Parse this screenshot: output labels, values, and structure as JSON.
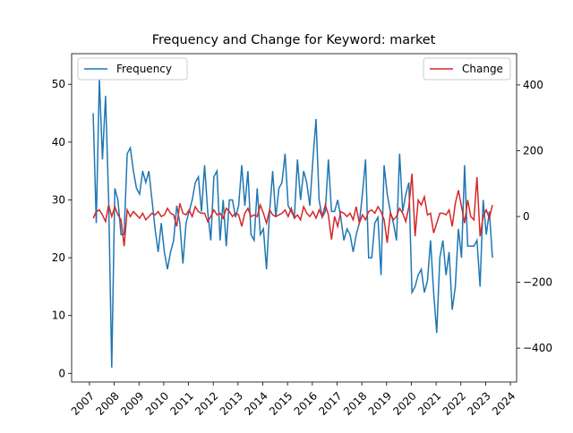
{
  "chart_data": {
    "type": "line",
    "title": "Frequency and Change for Keyword: market",
    "x": [
      2007.15,
      2007.275,
      2007.4,
      2007.525,
      2007.65,
      2007.775,
      2007.9,
      2008.025,
      2008.15,
      2008.275,
      2008.4,
      2008.525,
      2008.65,
      2008.775,
      2008.9,
      2009.025,
      2009.15,
      2009.275,
      2009.4,
      2009.525,
      2009.65,
      2009.775,
      2009.9,
      2010.025,
      2010.15,
      2010.275,
      2010.4,
      2010.525,
      2010.65,
      2010.775,
      2010.9,
      2011.025,
      2011.15,
      2011.275,
      2011.4,
      2011.525,
      2011.65,
      2011.775,
      2011.9,
      2012.025,
      2012.15,
      2012.275,
      2012.4,
      2012.525,
      2012.65,
      2012.775,
      2012.9,
      2013.025,
      2013.15,
      2013.275,
      2013.4,
      2013.525,
      2013.65,
      2013.775,
      2013.9,
      2014.025,
      2014.15,
      2014.275,
      2014.4,
      2014.525,
      2014.65,
      2014.775,
      2014.9,
      2015.025,
      2015.15,
      2015.275,
      2015.4,
      2015.525,
      2015.65,
      2015.775,
      2015.9,
      2016.025,
      2016.15,
      2016.275,
      2016.4,
      2016.525,
      2016.65,
      2016.775,
      2016.9,
      2017.025,
      2017.15,
      2017.275,
      2017.4,
      2017.525,
      2017.65,
      2017.775,
      2017.9,
      2018.025,
      2018.15,
      2018.275,
      2018.4,
      2018.525,
      2018.65,
      2018.775,
      2018.9,
      2019.025,
      2019.15,
      2019.275,
      2019.4,
      2019.525,
      2019.65,
      2019.775,
      2019.9,
      2020.025,
      2020.15,
      2020.275,
      2020.4,
      2020.525,
      2020.65,
      2020.775,
      2020.9,
      2021.025,
      2021.15,
      2021.275,
      2021.4,
      2021.525,
      2021.65,
      2021.775,
      2021.9,
      2022.025,
      2022.15,
      2022.275,
      2022.4,
      2022.525,
      2022.65,
      2022.775,
      2022.9,
      2023.025,
      2023.15,
      2023.275
    ],
    "series": [
      {
        "name": "Frequency",
        "color": "#1f77b4",
        "axis": "y",
        "values": [
          45,
          26,
          51,
          37,
          48,
          30,
          1,
          32,
          30,
          24,
          24,
          38,
          39,
          35,
          32,
          31,
          35,
          33,
          35,
          30,
          25,
          21,
          26,
          21,
          18,
          21,
          23,
          29,
          26,
          19,
          26,
          28,
          30,
          33,
          34,
          28,
          36,
          28,
          23,
          34,
          35,
          23,
          30,
          22,
          30,
          30,
          27,
          29,
          36,
          29,
          35,
          24,
          23,
          32,
          24,
          25,
          18,
          28,
          35,
          27,
          32,
          33,
          38,
          29,
          28,
          27,
          37,
          30,
          35,
          33,
          29,
          37,
          44,
          30,
          27,
          28,
          37,
          28,
          28,
          30,
          27,
          23,
          25,
          24,
          21,
          24,
          26,
          31,
          37,
          20,
          20,
          26,
          27,
          17,
          36,
          31,
          28,
          26,
          23,
          38,
          28,
          31,
          33,
          14,
          15,
          17,
          18,
          14,
          16,
          23,
          14,
          7,
          20,
          23,
          17,
          21,
          11,
          15,
          25,
          20,
          36,
          22,
          22,
          22,
          23,
          15,
          30,
          24,
          28,
          20
        ]
      },
      {
        "name": "Change",
        "color": "#d62728",
        "axis": "y2",
        "values": [
          -5,
          15,
          20,
          5,
          -15,
          35,
          0,
          30,
          5,
          -10,
          -90,
          20,
          0,
          15,
          5,
          -5,
          10,
          -10,
          0,
          10,
          5,
          15,
          0,
          5,
          25,
          10,
          5,
          -30,
          40,
          10,
          5,
          20,
          0,
          30,
          15,
          10,
          10,
          -15,
          0,
          20,
          5,
          10,
          -5,
          25,
          15,
          0,
          10,
          5,
          -30,
          10,
          25,
          0,
          5,
          0,
          35,
          10,
          -20,
          20,
          5,
          0,
          5,
          10,
          20,
          0,
          25,
          -5,
          5,
          -10,
          30,
          10,
          0,
          15,
          -5,
          20,
          0,
          35,
          5,
          -70,
          0,
          -30,
          15,
          10,
          0,
          10,
          -10,
          30,
          -20,
          5,
          -10,
          15,
          20,
          10,
          30,
          15,
          -10,
          -80,
          10,
          -10,
          0,
          25,
          10,
          -15,
          30,
          130,
          -60,
          50,
          35,
          60,
          5,
          10,
          -50,
          -20,
          10,
          10,
          5,
          20,
          -30,
          40,
          80,
          30,
          -20,
          50,
          0,
          -10,
          120,
          -60,
          0,
          20,
          -5,
          35
        ]
      }
    ],
    "xlim": [
      2006.28,
      2024.25
    ],
    "xticks": [
      2007,
      2008,
      2009,
      2010,
      2011,
      2012,
      2013,
      2014,
      2015,
      2016,
      2017,
      2018,
      2019,
      2020,
      2021,
      2022,
      2023,
      2024
    ],
    "ylim": [
      -1.5,
      55.3
    ],
    "yticks": [
      0,
      10,
      20,
      30,
      40,
      50
    ],
    "y2lim": [
      -503,
      495
    ],
    "y2ticks": [
      {
        "value": -400,
        "label": "−400"
      },
      {
        "value": -200,
        "label": "−200"
      },
      0,
      200,
      400
    ],
    "legend": [
      "upper left",
      "upper right"
    ]
  }
}
